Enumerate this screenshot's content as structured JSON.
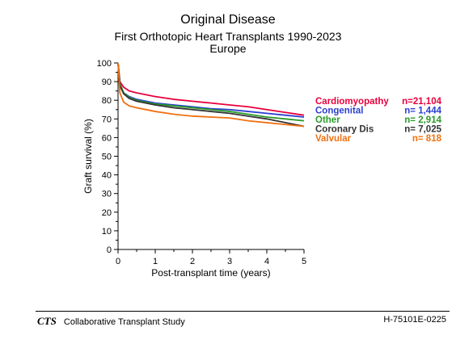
{
  "header": {
    "title": "Original Disease",
    "subtitle": "First Orthotopic Heart Transplants 1990-2023",
    "region": "Europe"
  },
  "footer": {
    "logo": "CTS",
    "organization": "Collaborative Transplant Study",
    "code": "H-75101E-0225"
  },
  "chart_data": {
    "type": "line",
    "xlabel": "Post-transplant time (years)",
    "ylabel": "Graft survival (%)",
    "xlim": [
      0,
      5
    ],
    "ylim": [
      0,
      100
    ],
    "x_ticks": [
      0,
      1,
      2,
      3,
      4,
      5
    ],
    "y_ticks": [
      0,
      10,
      20,
      30,
      40,
      50,
      60,
      70,
      80,
      90,
      100
    ],
    "grid": false,
    "legend_position": "right",
    "series": [
      {
        "name": "Cardiomyopathy",
        "n_label": "n=21,104",
        "color": "#e8003c",
        "x": [
          0,
          0.05,
          0.15,
          0.3,
          0.5,
          1,
          1.5,
          2,
          2.5,
          3,
          3.5,
          4,
          4.5,
          5
        ],
        "y": [
          100,
          90,
          87,
          85,
          84,
          82,
          80.5,
          79.5,
          78.5,
          77.5,
          76.5,
          75,
          73.5,
          72
        ]
      },
      {
        "name": "Congenital",
        "n_label": "n= 1,444",
        "color": "#2a3fd0",
        "x": [
          0,
          0.05,
          0.15,
          0.3,
          0.5,
          1,
          1.5,
          2,
          2.5,
          3,
          3.5,
          4,
          4.5,
          5
        ],
        "y": [
          100,
          88,
          84,
          82,
          80.5,
          78.5,
          77.5,
          76.5,
          75.5,
          75,
          74,
          73,
          72,
          71
        ]
      },
      {
        "name": "Other",
        "n_label": "n= 2,914",
        "color": "#2a9a2a",
        "x": [
          0,
          0.05,
          0.15,
          0.3,
          0.5,
          1,
          1.5,
          2,
          2.5,
          3,
          3.5,
          4,
          4.5,
          5
        ],
        "y": [
          100,
          89,
          84,
          81.5,
          80,
          78,
          77,
          76,
          75,
          74,
          72.5,
          71,
          70,
          69
        ]
      },
      {
        "name": "Coronary Dis",
        "n_label": "n= 7,025",
        "color": "#333333",
        "x": [
          0,
          0.05,
          0.15,
          0.3,
          0.5,
          1,
          1.5,
          2,
          2.5,
          3,
          3.5,
          4,
          4.5,
          5
        ],
        "y": [
          100,
          88,
          83.5,
          81,
          79.5,
          77.5,
          76,
          75,
          74,
          73,
          71.5,
          70,
          68,
          66
        ]
      },
      {
        "name": "Valvular",
        "n_label": "n=    818",
        "color": "#f07010",
        "x": [
          0,
          0.05,
          0.15,
          0.3,
          0.5,
          1,
          1.5,
          2,
          2.5,
          3,
          3.5,
          4,
          4.5,
          5
        ],
        "y": [
          100,
          84,
          79,
          77,
          76,
          74,
          72.5,
          71.5,
          71,
          70.5,
          69,
          68,
          67,
          66
        ]
      }
    ]
  }
}
